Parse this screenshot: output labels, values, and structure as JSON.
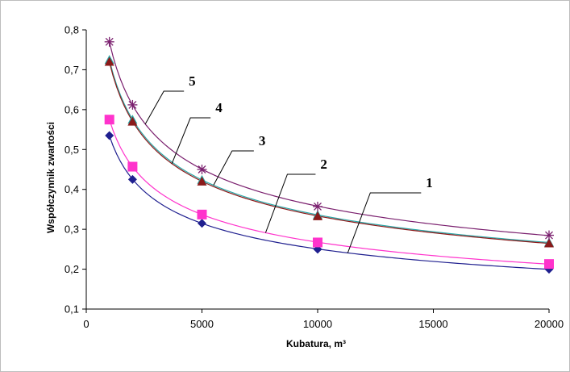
{
  "chart_data": {
    "type": "scatter",
    "title": "",
    "xlabel": "Kubatura, m³",
    "ylabel": "Współczynnik zwartości",
    "xlim": [
      0,
      20000
    ],
    "ylim": [
      0.1,
      0.8
    ],
    "x_ticks": [
      0,
      5000,
      10000,
      15000,
      20000
    ],
    "x_tick_labels": [
      "0",
      "5000",
      "10000",
      "15000",
      "20000"
    ],
    "y_ticks": [
      0.1,
      0.2,
      0.3,
      0.4,
      0.5,
      0.6,
      0.7,
      0.8
    ],
    "y_tick_labels": [
      "0,1",
      "0,2",
      "0,3",
      "0,4",
      "0,5",
      "0,6",
      "0,7",
      "0,8"
    ],
    "grid": false,
    "legend": "none",
    "trendlines": "power fits drawn through each series",
    "series": [
      {
        "label": "1",
        "color": "#1f1f8f",
        "marker": "diamond",
        "x": [
          1000,
          2000,
          5000,
          10000,
          20000
        ],
        "y": [
          0.535,
          0.425,
          0.315,
          0.25,
          0.2
        ]
      },
      {
        "label": "2",
        "color": "#ff33cc",
        "marker": "square",
        "x": [
          1000,
          2000,
          5000,
          10000,
          20000
        ],
        "y": [
          0.575,
          0.457,
          0.337,
          0.267,
          0.213
        ]
      },
      {
        "label": "3",
        "color": "#2aa6a6",
        "marker": "triangle",
        "x": [
          1000,
          2000,
          5000,
          10000,
          20000
        ],
        "y": [
          0.725,
          0.575,
          0.424,
          0.336,
          0.267
        ]
      },
      {
        "label": "4",
        "color": "#8b1a1a",
        "marker": "triangle",
        "x": [
          1000,
          2000,
          5000,
          10000,
          20000
        ],
        "y": [
          0.72,
          0.57,
          0.42,
          0.333,
          0.265
        ]
      },
      {
        "label": "5",
        "color": "#7a1f6e",
        "marker": "star",
        "x": [
          1000,
          2000,
          5000,
          10000,
          20000
        ],
        "y": [
          0.77,
          0.612,
          0.45,
          0.357,
          0.285
        ]
      }
    ]
  }
}
